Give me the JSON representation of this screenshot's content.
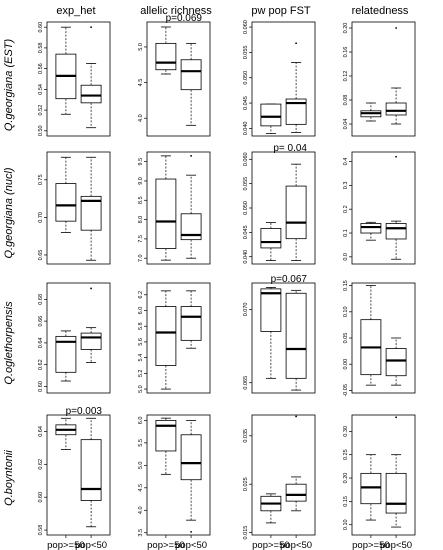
{
  "chart_data": {
    "type": "box",
    "columns": [
      "exp_het",
      "allelic richness",
      "pw pop FST",
      "relatedness"
    ],
    "rows": [
      "Q.georgiana (EST)",
      "Q.georgiana (nucl)",
      "Q.oglethorpensis",
      "Q.boyntonii"
    ],
    "categories": [
      "pop>=50",
      "pop<50"
    ],
    "panels": [
      [
        {
          "ylim": [
            0.495,
            0.605
          ],
          "ticks": [
            0.5,
            0.52,
            0.54,
            0.56,
            0.58,
            0.6
          ],
          "ticklabels": [
            "0.50",
            "0.52",
            "0.54",
            "0.56",
            "0.58",
            "0.60"
          ],
          "annotation": "",
          "boxes": [
            {
              "whisker_low": 0.516,
              "q1": 0.531,
              "median": 0.553,
              "q3": 0.574,
              "whisker_high": 0.6,
              "outliers": []
            },
            {
              "whisker_low": 0.503,
              "q1": 0.527,
              "median": 0.534,
              "q3": 0.544,
              "whisker_high": 0.565,
              "outliers": [
                0.6
              ]
            }
          ]
        },
        {
          "ylim": [
            3.75,
            5.35
          ],
          "ticks": [
            4.0,
            4.5,
            5.0
          ],
          "ticklabels": [
            "4.0",
            "4.5",
            "5.0"
          ],
          "annotation": "p=0.069",
          "boxes": [
            {
              "whisker_low": 4.62,
              "q1": 4.68,
              "median": 4.78,
              "q3": 5.05,
              "whisker_high": 5.28,
              "outliers": []
            },
            {
              "whisker_low": 3.9,
              "q1": 4.4,
              "median": 4.66,
              "q3": 4.82,
              "whisker_high": 5.05,
              "outliers": []
            }
          ]
        },
        {
          "ylim": [
            0.0385,
            0.061
          ],
          "ticks": [
            0.04,
            0.045,
            0.05,
            0.055,
            0.06
          ],
          "ticklabels": [
            "0.040",
            "0.045",
            "0.050",
            "0.055",
            "0.060"
          ],
          "annotation": "",
          "boxes": [
            {
              "whisker_low": 0.039,
              "q1": 0.0405,
              "median": 0.0423,
              "q3": 0.0448,
              "whisker_high": 0.0448,
              "outliers": []
            },
            {
              "whisker_low": 0.0392,
              "q1": 0.0408,
              "median": 0.045,
              "q3": 0.0458,
              "whisker_high": 0.053,
              "outliers": [
                0.0568
              ]
            }
          ]
        },
        {
          "ylim": [
            0.02,
            0.21
          ],
          "ticks": [
            0.04,
            0.08,
            0.12,
            0.16,
            0.2
          ],
          "ticklabels": [
            "0.04",
            "0.08",
            "0.12",
            "0.16",
            "0.20"
          ],
          "annotation": "",
          "boxes": [
            {
              "whisker_low": 0.045,
              "q1": 0.052,
              "median": 0.058,
              "q3": 0.062,
              "whisker_high": 0.075,
              "outliers": []
            },
            {
              "whisker_low": 0.04,
              "q1": 0.055,
              "median": 0.062,
              "q3": 0.075,
              "whisker_high": 0.1,
              "outliers": [
                0.2
              ]
            }
          ]
        }
      ],
      [
        {
          "ylim": [
            0.638,
            0.787
          ],
          "ticks": [
            0.65,
            0.7,
            0.75
          ],
          "ticklabels": [
            "0.65",
            "0.70",
            "0.75"
          ],
          "annotation": "",
          "boxes": [
            {
              "whisker_low": 0.68,
              "q1": 0.695,
              "median": 0.716,
              "q3": 0.745,
              "whisker_high": 0.78,
              "outliers": []
            },
            {
              "whisker_low": 0.643,
              "q1": 0.683,
              "median": 0.722,
              "q3": 0.728,
              "whisker_high": 0.78,
              "outliers": []
            }
          ]
        },
        {
          "ylim": [
            6.85,
            9.75
          ],
          "ticks": [
            7.0,
            7.5,
            8.0,
            8.5,
            9.0,
            9.5
          ],
          "ticklabels": [
            "7.0",
            "7.5",
            "8.0",
            "8.5",
            "9.0",
            "9.5"
          ],
          "annotation": "",
          "boxes": [
            {
              "whisker_low": 6.95,
              "q1": 7.25,
              "median": 7.95,
              "q3": 9.05,
              "whisker_high": 9.65,
              "outliers": []
            },
            {
              "whisker_low": 7.0,
              "q1": 7.48,
              "median": 7.6,
              "q3": 8.15,
              "whisker_high": 9.15,
              "outliers": [
                9.65
              ]
            }
          ]
        },
        {
          "ylim": [
            0.0385,
            0.0615
          ],
          "ticks": [
            0.04,
            0.045,
            0.05,
            0.055,
            0.06
          ],
          "ticklabels": [
            "0.040",
            "0.045",
            "0.050",
            "0.055",
            "0.060"
          ],
          "annotation": "p=  0.04",
          "boxes": [
            {
              "whisker_low": 0.0392,
              "q1": 0.0418,
              "median": 0.043,
              "q3": 0.0458,
              "whisker_high": 0.047,
              "outliers": []
            },
            {
              "whisker_low": 0.0392,
              "q1": 0.0437,
              "median": 0.047,
              "q3": 0.0545,
              "whisker_high": 0.059,
              "outliers": []
            }
          ]
        },
        {
          "ylim": [
            -0.03,
            0.44
          ],
          "ticks": [
            0.0,
            0.1,
            0.2,
            0.3,
            0.4
          ],
          "ticklabels": [
            "0.0",
            "0.1",
            "0.2",
            "0.3",
            "0.4"
          ],
          "annotation": "",
          "boxes": [
            {
              "whisker_low": 0.07,
              "q1": 0.1,
              "median": 0.125,
              "q3": 0.14,
              "whisker_high": 0.145,
              "outliers": []
            },
            {
              "whisker_low": -0.01,
              "q1": 0.075,
              "median": 0.12,
              "q3": 0.14,
              "whisker_high": 0.15,
              "outliers": [
                0.42
              ]
            }
          ]
        }
      ],
      [
        {
          "ylim": [
            0.594,
            0.695
          ],
          "ticks": [
            0.6,
            0.62,
            0.64,
            0.66,
            0.68
          ],
          "ticklabels": [
            "0.60",
            "0.62",
            "0.64",
            "0.66",
            "0.68"
          ],
          "annotation": "",
          "boxes": [
            {
              "whisker_low": 0.605,
              "q1": 0.613,
              "median": 0.641,
              "q3": 0.646,
              "whisker_high": 0.651,
              "outliers": []
            },
            {
              "whisker_low": 0.622,
              "q1": 0.634,
              "median": 0.645,
              "q3": 0.649,
              "whisker_high": 0.654,
              "outliers": [
                0.69
              ]
            }
          ]
        },
        {
          "ylim": [
            4.95,
            6.35
          ],
          "ticks": [
            5.0,
            5.2,
            5.4,
            5.6,
            5.8,
            6.0,
            6.2
          ],
          "ticklabels": [
            "5.0",
            "5.2",
            "5.4",
            "5.6",
            "5.8",
            "6.0",
            "6.2"
          ],
          "annotation": "",
          "boxes": [
            {
              "whisker_low": 5.0,
              "q1": 5.3,
              "median": 5.72,
              "q3": 6.05,
              "whisker_high": 6.25,
              "outliers": []
            },
            {
              "whisker_low": 5.52,
              "q1": 5.62,
              "median": 5.92,
              "q3": 6.05,
              "whisker_high": 6.25,
              "outliers": []
            }
          ]
        },
        {
          "ylim": [
            0.0643,
            0.0718
          ],
          "ticks": [
            0.065,
            0.07
          ],
          "ticklabels": [
            "0.065",
            "0.070"
          ],
          "annotation": "p=0.067",
          "boxes": [
            {
              "whisker_low": 0.0653,
              "q1": 0.0685,
              "median": 0.0711,
              "q3": 0.0714,
              "whisker_high": 0.0715,
              "outliers": []
            },
            {
              "whisker_low": 0.0645,
              "q1": 0.0653,
              "median": 0.0673,
              "q3": 0.0711,
              "whisker_high": 0.0713,
              "outliers": []
            }
          ]
        },
        {
          "ylim": [
            -0.055,
            0.155
          ],
          "ticks": [
            -0.05,
            0.0,
            0.05,
            0.1,
            0.15
          ],
          "ticklabels": [
            "-0.05",
            "0.00",
            "0.05",
            "0.10",
            "0.15"
          ],
          "annotation": "",
          "boxes": [
            {
              "whisker_low": -0.04,
              "q1": -0.02,
              "median": 0.032,
              "q3": 0.085,
              "whisker_high": 0.15,
              "outliers": []
            },
            {
              "whisker_low": -0.04,
              "q1": -0.022,
              "median": 0.007,
              "q3": 0.03,
              "whisker_high": 0.05,
              "outliers": []
            }
          ]
        }
      ],
      [
        {
          "ylim": [
            0.577,
            0.65
          ],
          "ticks": [
            0.58,
            0.6,
            0.62,
            0.64
          ],
          "ticklabels": [
            "0.58",
            "0.60",
            "0.62",
            "0.64"
          ],
          "annotation": "p=0.003",
          "boxes": [
            {
              "whisker_low": 0.629,
              "q1": 0.638,
              "median": 0.641,
              "q3": 0.644,
              "whisker_high": 0.648,
              "outliers": []
            },
            {
              "whisker_low": 0.582,
              "q1": 0.598,
              "median": 0.605,
              "q3": 0.635,
              "whisker_high": 0.648,
              "outliers": []
            }
          ]
        },
        {
          "ylim": [
            3.45,
            6.12
          ],
          "ticks": [
            3.5,
            4.0,
            4.5,
            5.0,
            5.5,
            6.0
          ],
          "ticklabels": [
            "3.5",
            "4.0",
            "4.5",
            "5.0",
            "5.5",
            "6.0"
          ],
          "annotation": "",
          "boxes": [
            {
              "whisker_low": 4.8,
              "q1": 5.32,
              "median": 5.88,
              "q3": 6.0,
              "whisker_high": 6.05,
              "outliers": []
            },
            {
              "whisker_low": 3.78,
              "q1": 4.68,
              "median": 5.05,
              "q3": 5.68,
              "whisker_high": 6.0,
              "outliers": [
                3.52
              ]
            }
          ]
        },
        {
          "ylim": [
            0.0145,
            0.0393
          ],
          "ticks": [
            0.015,
            0.025,
            0.035
          ],
          "ticklabels": [
            "0.015",
            "0.025",
            "0.035"
          ],
          "annotation": "",
          "boxes": [
            {
              "whisker_low": 0.017,
              "q1": 0.0195,
              "median": 0.021,
              "q3": 0.0225,
              "whisker_high": 0.023,
              "outliers": []
            },
            {
              "whisker_low": 0.0195,
              "q1": 0.0215,
              "median": 0.0228,
              "q3": 0.025,
              "whisker_high": 0.0265,
              "outliers": [
                0.039
              ]
            }
          ]
        },
        {
          "ylim": [
            0.078,
            0.335
          ],
          "ticks": [
            0.1,
            0.15,
            0.2,
            0.25,
            0.3
          ],
          "ticklabels": [
            "0.10",
            "0.15",
            "0.20",
            "0.25",
            "0.30"
          ],
          "annotation": "",
          "boxes": [
            {
              "whisker_low": 0.11,
              "q1": 0.145,
              "median": 0.18,
              "q3": 0.21,
              "whisker_high": 0.25,
              "outliers": []
            },
            {
              "whisker_low": 0.095,
              "q1": 0.125,
              "median": 0.145,
              "q3": 0.21,
              "whisker_high": 0.25,
              "outliers": [
                0.33
              ]
            }
          ]
        }
      ]
    ]
  }
}
